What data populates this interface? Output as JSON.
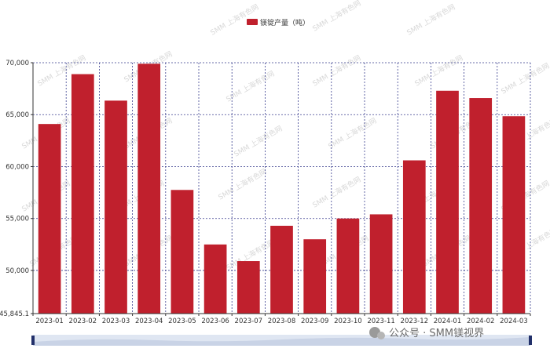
{
  "chart_data": {
    "type": "bar",
    "categories": [
      "2023-01",
      "2023-02",
      "2023-03",
      "2023-04",
      "2023-05",
      "2023-06",
      "2023-07",
      "2023-08",
      "2023-09",
      "2023-10",
      "2023-11",
      "2023-12",
      "2024-01",
      "2024-02",
      "2024-03"
    ],
    "series": [
      {
        "name": "镁锭产量（吨）",
        "color": "#c0202d",
        "values": [
          64100,
          68900,
          66350,
          69900,
          57750,
          52500,
          50900,
          54300,
          53000,
          55000,
          55400,
          60600,
          67300,
          66600,
          64850
        ]
      }
    ],
    "ylim": [
      45845.1,
      70000
    ],
    "yticks": [
      {
        "value": 45845.1,
        "label": "45,845.1"
      },
      {
        "value": 50000,
        "label": "50,000"
      },
      {
        "value": 55000,
        "label": "55,000"
      },
      {
        "value": 60000,
        "label": "60,000"
      },
      {
        "value": 65000,
        "label": "65,000"
      },
      {
        "value": 70000,
        "label": "70,000"
      }
    ],
    "grid": true,
    "legend_position": "top-center",
    "watermark": "SMM 上海有色网",
    "brand_text": "公众号 · SMM镁视界"
  }
}
